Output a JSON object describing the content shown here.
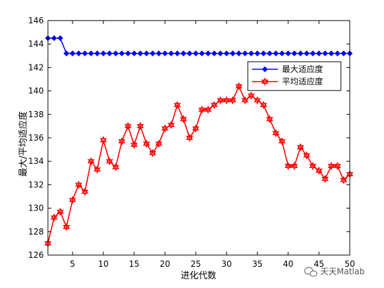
{
  "chart_data": {
    "type": "line",
    "xlabel": "进化代数",
    "ylabel": "最大/平均适应度",
    "xlim": [
      1,
      50
    ],
    "ylim": [
      126,
      146
    ],
    "xticks": [
      5,
      10,
      15,
      20,
      25,
      30,
      35,
      40,
      45,
      50
    ],
    "yticks": [
      126,
      128,
      130,
      132,
      134,
      136,
      138,
      140,
      142,
      144,
      146
    ],
    "grid": false,
    "legend_position": "top-right",
    "x": [
      1,
      2,
      3,
      4,
      5,
      6,
      7,
      8,
      9,
      10,
      11,
      12,
      13,
      14,
      15,
      16,
      17,
      18,
      19,
      20,
      21,
      22,
      23,
      24,
      25,
      26,
      27,
      28,
      29,
      30,
      31,
      32,
      33,
      34,
      35,
      36,
      37,
      38,
      39,
      40,
      41,
      42,
      43,
      44,
      45,
      46,
      47,
      48,
      49,
      50
    ],
    "series": [
      {
        "name": "最大适应度",
        "color": "#0000ff",
        "marker": "diamond",
        "values": [
          144.5,
          144.5,
          144.5,
          143.2,
          143.2,
          143.2,
          143.2,
          143.2,
          143.2,
          143.2,
          143.2,
          143.2,
          143.2,
          143.2,
          143.2,
          143.2,
          143.2,
          143.2,
          143.2,
          143.2,
          143.2,
          143.2,
          143.2,
          143.2,
          143.2,
          143.2,
          143.2,
          143.2,
          143.2,
          143.2,
          143.2,
          143.2,
          143.2,
          143.2,
          143.2,
          143.2,
          143.2,
          143.2,
          143.2,
          143.2,
          143.2,
          143.2,
          143.2,
          143.2,
          143.2,
          143.2,
          143.2,
          143.2,
          143.2,
          143.2
        ]
      },
      {
        "name": "平均适应度",
        "color": "#ff0000",
        "marker": "hexagram",
        "values": [
          127.0,
          129.2,
          129.7,
          128.4,
          130.7,
          132.0,
          131.4,
          134.0,
          133.3,
          135.8,
          134.0,
          133.5,
          135.7,
          137.0,
          135.4,
          137.0,
          135.5,
          134.7,
          135.5,
          136.8,
          137.1,
          138.8,
          137.6,
          136.0,
          136.8,
          138.4,
          138.4,
          138.8,
          139.2,
          139.2,
          139.2,
          140.4,
          139.2,
          139.6,
          139.2,
          138.8,
          137.6,
          136.4,
          135.7,
          133.6,
          133.6,
          135.2,
          134.5,
          133.6,
          133.2,
          132.5,
          133.6,
          133.6,
          132.4,
          132.9
        ]
      }
    ]
  },
  "watermark": {
    "icon": "wechat-icon",
    "text": "天天Matlab"
  }
}
